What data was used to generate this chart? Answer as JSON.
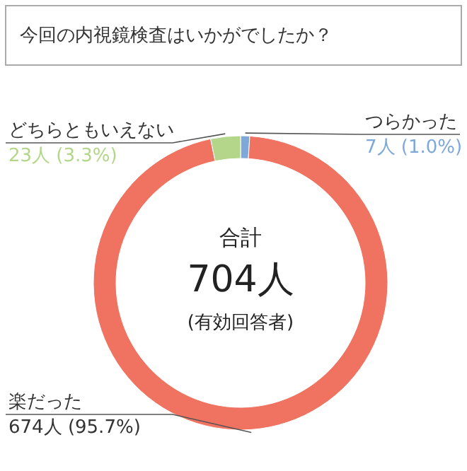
{
  "chart_data": {
    "type": "donut",
    "title": "今回の内視鏡検査はいかがでしたか？",
    "categories": [
      "つらかった",
      "楽だった",
      "どちらともいえない"
    ],
    "values": [
      7,
      674,
      23
    ],
    "colors": [
      "#7ea8d8",
      "#f07362",
      "#b4d68a"
    ],
    "value_labels": [
      "7人 (1.0%)",
      "674人 (95.7%)",
      "23人 (3.3%)"
    ],
    "annotations": [
      "合計",
      "704人",
      "(有効回答者)"
    ]
  }
}
